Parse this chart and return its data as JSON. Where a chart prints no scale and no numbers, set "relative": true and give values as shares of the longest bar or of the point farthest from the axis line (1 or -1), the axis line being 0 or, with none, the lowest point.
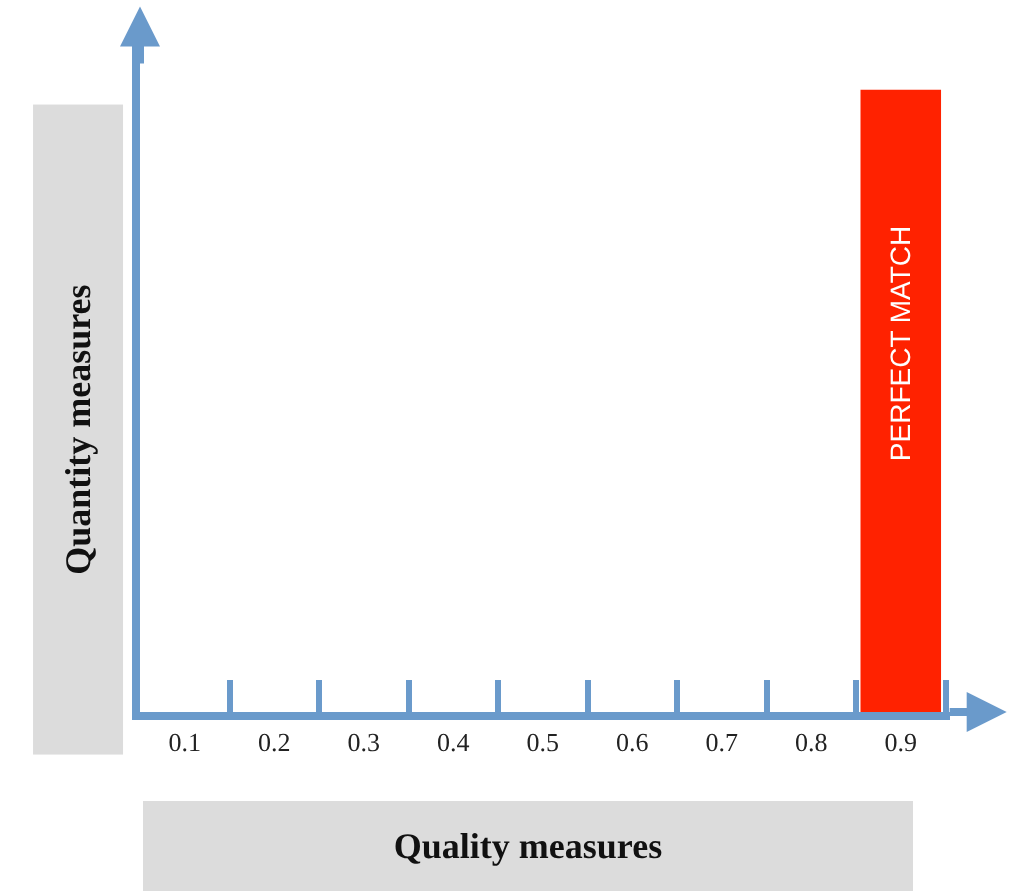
{
  "chart_data": {
    "type": "bar",
    "relative": true,
    "xlabel": "Quality measures",
    "ylabel": "Quantity measures",
    "categories": [
      "0.1",
      "0.2",
      "0.3",
      "0.4",
      "0.5",
      "0.6",
      "0.7",
      "0.8",
      "0.9"
    ],
    "values": [
      null,
      null,
      null,
      null,
      null,
      null,
      null,
      null,
      1
    ],
    "color": "#ff2200",
    "annotations": [
      "PERFECT MATCH"
    ],
    "legend": false
  }
}
